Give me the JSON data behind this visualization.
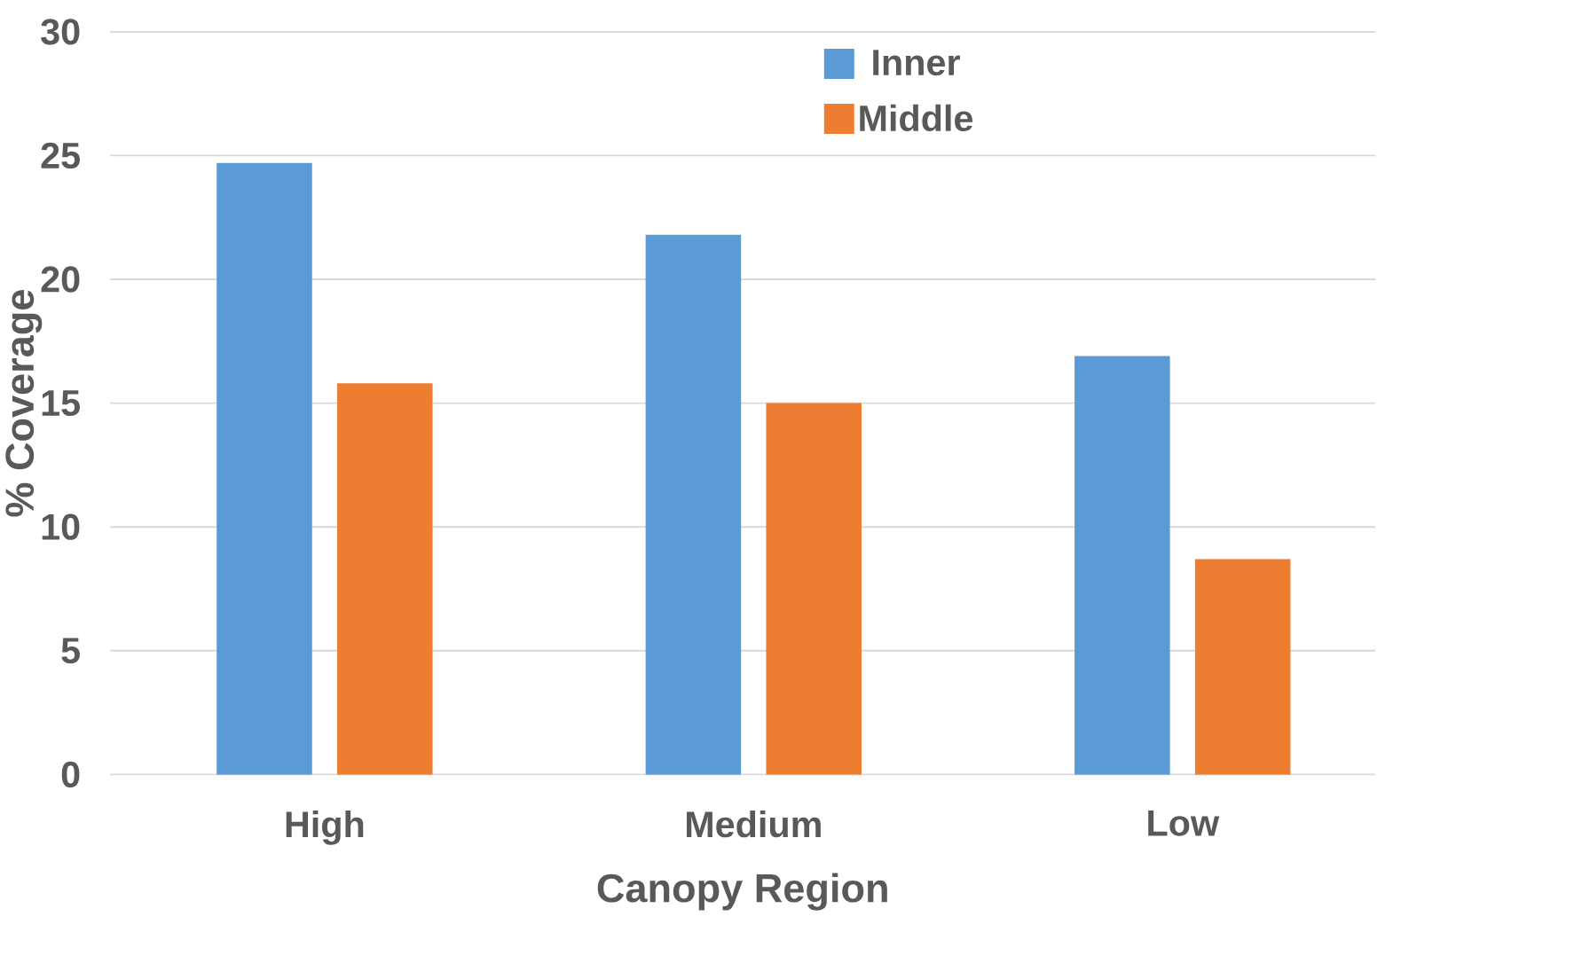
{
  "chart_data": {
    "type": "bar",
    "xlabel": "Canopy Region",
    "ylabel": "% Coverage",
    "categories": [
      "High",
      "Medium",
      "Low"
    ],
    "series": [
      {
        "name": "Inner",
        "color": "#5b9bd5",
        "values": [
          24.7,
          21.8,
          16.9
        ]
      },
      {
        "name": "Middle",
        "color": "#ed7d31",
        "values": [
          15.8,
          15.0,
          8.7
        ]
      }
    ],
    "ylim": [
      0,
      30
    ],
    "yticks": [
      0,
      5,
      10,
      15,
      20,
      25,
      30
    ],
    "grid": "y",
    "legend": "top right"
  }
}
